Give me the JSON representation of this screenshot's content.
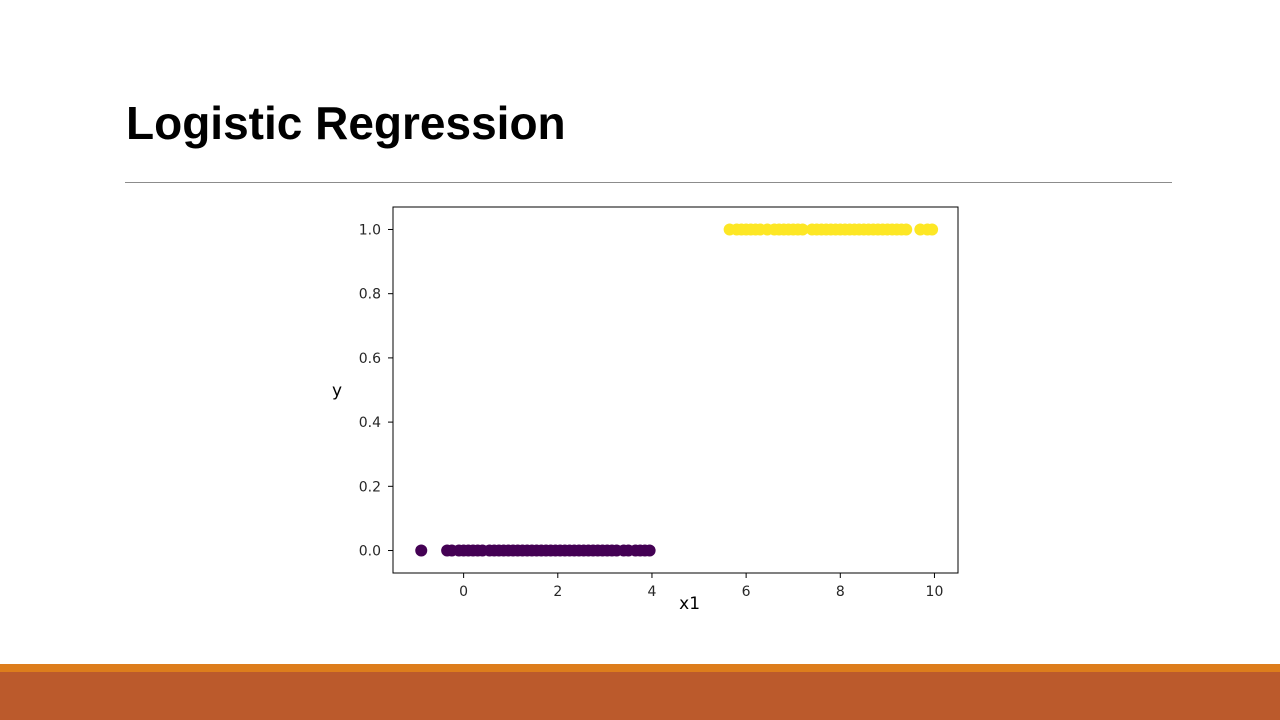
{
  "slide": {
    "title": "Logistic Regression"
  },
  "colors": {
    "divider": "#8c8c8c",
    "footer_thin": "#dd7d1c",
    "footer_thick": "#bb5a2c",
    "class_0": "#440154",
    "class_1": "#fde725"
  },
  "chart_data": {
    "type": "scatter",
    "xlabel": "x1",
    "ylabel": "y",
    "xlim": [
      -1.5,
      10.5
    ],
    "ylim": [
      -0.07,
      1.07
    ],
    "xticks": [
      0,
      2,
      4,
      6,
      8,
      10
    ],
    "yticks": [
      0.0,
      0.2,
      0.4,
      0.6,
      0.8,
      1.0
    ],
    "grid": false,
    "series": [
      {
        "color": "#440154",
        "x": [
          -0.9,
          -0.35,
          -0.25,
          -0.1,
          0.0,
          0.1,
          0.2,
          0.3,
          0.4,
          0.55,
          0.65,
          0.75,
          0.85,
          0.95,
          1.05,
          1.15,
          1.25,
          1.35,
          1.45,
          1.55,
          1.65,
          1.75,
          1.85,
          1.95,
          2.05,
          2.15,
          2.25,
          2.35,
          2.45,
          2.55,
          2.65,
          2.75,
          2.85,
          2.95,
          3.05,
          3.15,
          3.25,
          3.4,
          3.5,
          3.65,
          3.75,
          3.85,
          3.95
        ],
        "y": [
          0,
          0,
          0,
          0,
          0,
          0,
          0,
          0,
          0,
          0,
          0,
          0,
          0,
          0,
          0,
          0,
          0,
          0,
          0,
          0,
          0,
          0,
          0,
          0,
          0,
          0,
          0,
          0,
          0,
          0,
          0,
          0,
          0,
          0,
          0,
          0,
          0,
          0,
          0,
          0,
          0,
          0,
          0
        ]
      },
      {
        "color": "#fde725",
        "x": [
          5.65,
          5.8,
          5.9,
          6.0,
          6.1,
          6.2,
          6.3,
          6.45,
          6.6,
          6.7,
          6.8,
          6.9,
          7.0,
          7.1,
          7.2,
          7.4,
          7.5,
          7.6,
          7.7,
          7.8,
          7.9,
          8.0,
          8.1,
          8.2,
          8.3,
          8.4,
          8.5,
          8.6,
          8.7,
          8.8,
          8.9,
          9.0,
          9.1,
          9.2,
          9.3,
          9.4,
          9.7,
          9.85,
          9.95
        ],
        "y": [
          1,
          1,
          1,
          1,
          1,
          1,
          1,
          1,
          1,
          1,
          1,
          1,
          1,
          1,
          1,
          1,
          1,
          1,
          1,
          1,
          1,
          1,
          1,
          1,
          1,
          1,
          1,
          1,
          1,
          1,
          1,
          1,
          1,
          1,
          1,
          1,
          1,
          1,
          1
        ]
      }
    ]
  }
}
